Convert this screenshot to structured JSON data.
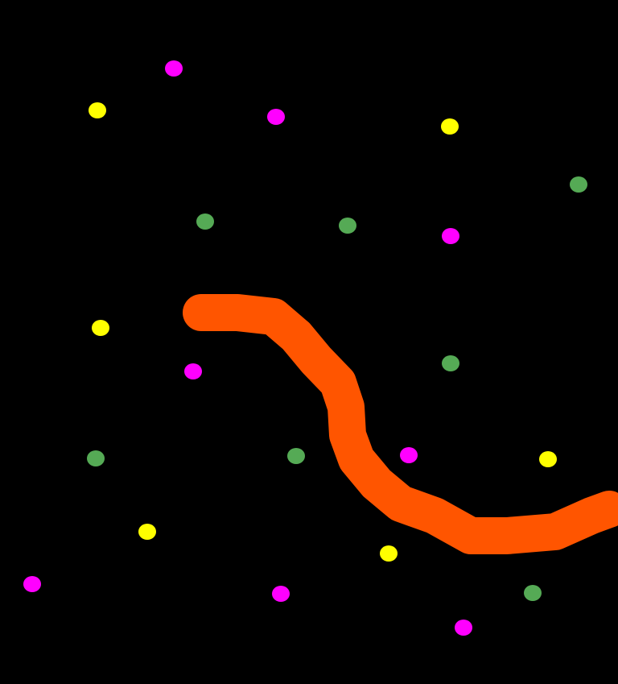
{
  "canvas": {
    "background": "#000000",
    "stroke_color": "#ff5500",
    "dot_colors": {
      "magenta": "#ff00ff",
      "yellow": "#ffff00",
      "green": "#55aa55"
    }
  }
}
